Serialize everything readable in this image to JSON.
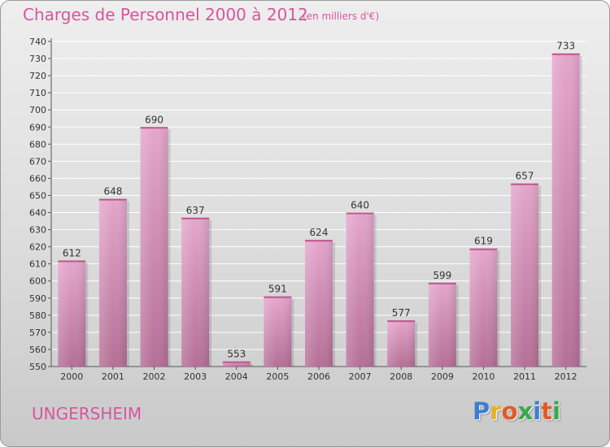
{
  "header": {
    "title": "Charges de Personnel 2000 à 2012",
    "subtitle": "(en milliers d'€)"
  },
  "footer": {
    "town": "UNGERSHEIM",
    "logo_letters": [
      "P",
      "r",
      "o",
      "x",
      "i",
      "t",
      "i"
    ],
    "logo_colors": [
      "#3a7fd0",
      "#e8b020",
      "#e05a2a",
      "#3aa84a",
      "#3a7fd0",
      "#e05a2a",
      "#3aa84a"
    ]
  },
  "chart_data": {
    "type": "bar",
    "title": "Charges de Personnel 2000 à 2012",
    "subtitle": "(en milliers d'€)",
    "categories": [
      "2000",
      "2001",
      "2002",
      "2003",
      "2004",
      "2005",
      "2006",
      "2007",
      "2008",
      "2009",
      "2010",
      "2011",
      "2012"
    ],
    "values": [
      612,
      648,
      690,
      637,
      553,
      591,
      624,
      640,
      577,
      599,
      619,
      657,
      733
    ],
    "ylim": [
      550,
      740
    ],
    "yticks": [
      550,
      560,
      570,
      580,
      590,
      600,
      610,
      620,
      630,
      640,
      650,
      660,
      670,
      680,
      690,
      700,
      710,
      720,
      730,
      740
    ],
    "grid": true,
    "bar_color_top": "#e4a6cc",
    "bar_color_bottom": "#b56f96"
  }
}
